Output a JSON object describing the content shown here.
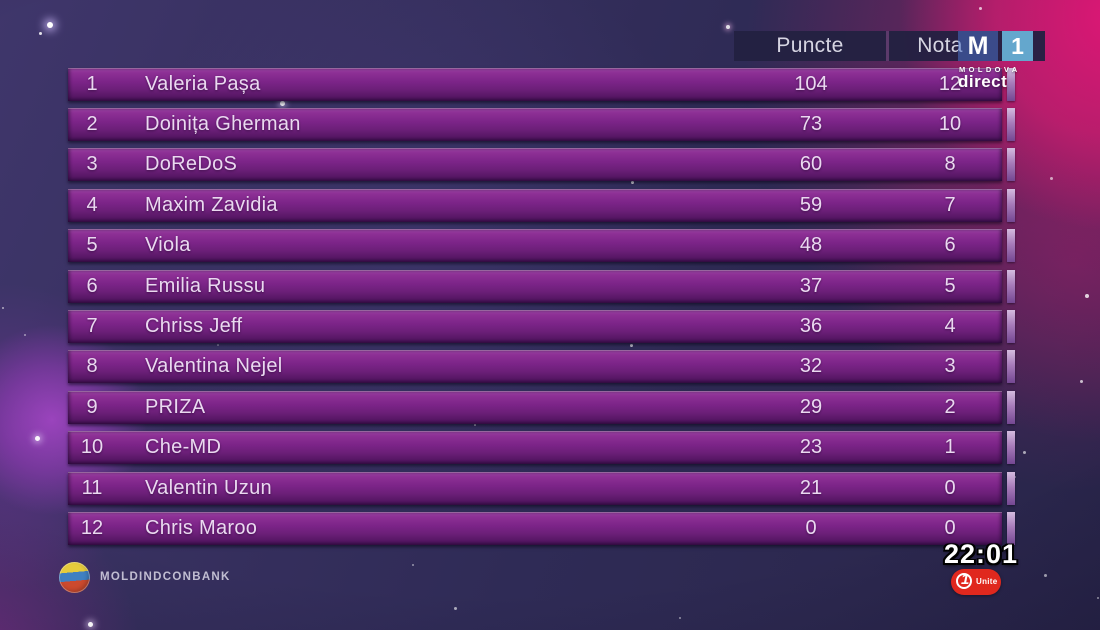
{
  "chart_data": {
    "type": "table",
    "columns": [
      "rank",
      "artist",
      "Puncte",
      "Nota"
    ],
    "rows": [
      [
        1,
        "Valeria Pașa",
        104,
        12
      ],
      [
        2,
        "Doinița Gherman",
        73,
        10
      ],
      [
        3,
        "DoReDoS",
        60,
        8
      ],
      [
        4,
        "Maxim Zavidia",
        59,
        7
      ],
      [
        5,
        "Viola",
        48,
        6
      ],
      [
        6,
        "Emilia Russu",
        37,
        5
      ],
      [
        7,
        "Chriss Jeff",
        36,
        4
      ],
      [
        8,
        "Valentina Nejel",
        32,
        3
      ],
      [
        9,
        "PRIZA",
        29,
        2
      ],
      [
        10,
        "Che-MD",
        23,
        1
      ],
      [
        11,
        "Valentin Uzun",
        21,
        0
      ],
      [
        12,
        "Chris Maroo",
        0,
        0
      ]
    ],
    "layout": "ranked scoreboard, 12 rows, points column and score (nota) column"
  },
  "header": {
    "puncte": "Puncte",
    "nota": "Nota"
  },
  "rows": [
    {
      "rank": "1",
      "name": "Valeria Pașa",
      "puncte": "104",
      "nota": "12"
    },
    {
      "rank": "2",
      "name": "Doinița Gherman",
      "puncte": "73",
      "nota": "10"
    },
    {
      "rank": "3",
      "name": "DoReDoS",
      "puncte": "60",
      "nota": "8"
    },
    {
      "rank": "4",
      "name": "Maxim Zavidia",
      "puncte": "59",
      "nota": "7"
    },
    {
      "rank": "5",
      "name": "Viola",
      "puncte": "48",
      "nota": "6"
    },
    {
      "rank": "6",
      "name": "Emilia Russu",
      "puncte": "37",
      "nota": "5"
    },
    {
      "rank": "7",
      "name": "Chriss Jeff",
      "puncte": "36",
      "nota": "4"
    },
    {
      "rank": "8",
      "name": "Valentina Nejel",
      "puncte": "32",
      "nota": "3"
    },
    {
      "rank": "9",
      "name": "PRIZA",
      "puncte": "29",
      "nota": "2"
    },
    {
      "rank": "10",
      "name": "Che-MD",
      "puncte": "23",
      "nota": "1"
    },
    {
      "rank": "11",
      "name": "Valentin Uzun",
      "puncte": "21",
      "nota": "0"
    },
    {
      "rank": "12",
      "name": "Chris Maroo",
      "puncte": "0",
      "nota": "0"
    }
  ],
  "branding": {
    "m1": {
      "m": "M",
      "one": "1",
      "moldova": "MOLDOVA",
      "direct": "direct"
    },
    "sponsor": {
      "name": "MOLDINDCONBANK"
    },
    "clock": "22:01",
    "unite": {
      "one": "1",
      "label": "Unite"
    }
  },
  "colors": {
    "row_purple": "#7c2488",
    "header_navy": "#232141",
    "background_indigo": "#2f2b56",
    "accent_pink": "#cb1c76",
    "m1_blue": "#6cbae0",
    "unite_red": "#e0281e"
  }
}
